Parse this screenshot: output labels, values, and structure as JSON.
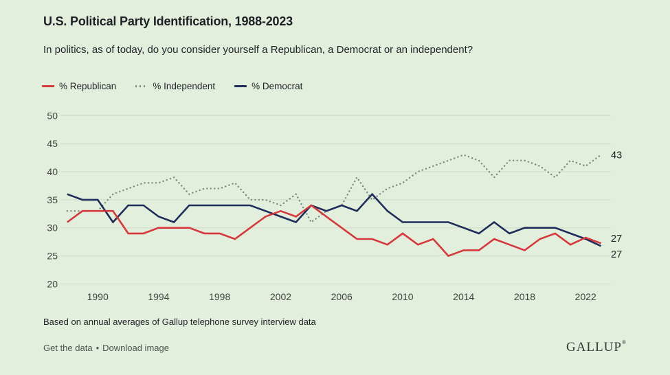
{
  "chart_data": {
    "type": "line",
    "title": "U.S. Political Party Identification, 1988-2023",
    "subtitle": "In politics, as of today, do you consider yourself a Republican, a Democrat or an independent?",
    "x": [
      1988,
      1989,
      1990,
      1991,
      1992,
      1993,
      1994,
      1995,
      1996,
      1997,
      1998,
      1999,
      2000,
      2001,
      2002,
      2003,
      2004,
      2005,
      2006,
      2007,
      2008,
      2009,
      2010,
      2011,
      2012,
      2013,
      2014,
      2015,
      2016,
      2017,
      2018,
      2019,
      2020,
      2021,
      2022,
      2023
    ],
    "series": [
      {
        "name": "% Republican",
        "color": "#d6383c",
        "line_style": "solid",
        "values": [
          31,
          33,
          33,
          33,
          29,
          29,
          30,
          30,
          30,
          29,
          29,
          28,
          30,
          32,
          33,
          32,
          34,
          32,
          30,
          28,
          28,
          27,
          29,
          27,
          28,
          25,
          26,
          26,
          28,
          27,
          26,
          28,
          29,
          27,
          28,
          27
        ]
      },
      {
        "name": "% Independent",
        "color": "#7d8c82",
        "line_style": "dotted",
        "values": [
          33,
          33,
          33,
          36,
          37,
          38,
          38,
          39,
          36,
          37,
          37,
          38,
          35,
          35,
          34,
          36,
          31,
          33,
          34,
          39,
          35,
          37,
          38,
          40,
          41,
          42,
          43,
          42,
          39,
          42,
          42,
          41,
          39,
          42,
          41,
          43
        ]
      },
      {
        "name": "% Democrat",
        "color": "#1f2d5a",
        "line_style": "solid",
        "values": [
          36,
          35,
          35,
          31,
          34,
          34,
          32,
          31,
          34,
          34,
          34,
          34,
          34,
          33,
          32,
          31,
          34,
          33,
          34,
          33,
          36,
          33,
          31,
          31,
          31,
          31,
          30,
          29,
          31,
          29,
          30,
          30,
          30,
          29,
          28,
          27
        ]
      }
    ],
    "ylim": [
      20,
      50
    ],
    "y_ticks": [
      50,
      45,
      40,
      35,
      30,
      25,
      20
    ],
    "x_ticks": [
      1990,
      1994,
      1998,
      2002,
      2006,
      2010,
      2014,
      2018,
      2022
    ],
    "end_labels": [
      {
        "series": "% Independent",
        "value": 43
      },
      {
        "series": "% Republican",
        "value": 27
      },
      {
        "series": "% Democrat",
        "value": 27
      }
    ],
    "grid": true,
    "legend_position": "top-left",
    "background_color": "#e2efdd",
    "gridline_color": "#ccdcc8",
    "axis_label_color": "#3f443f",
    "text_color": "#1d2125"
  },
  "footer": {
    "note": "Based on annual averages of Gallup telephone survey interview data",
    "links": [
      "Get the data",
      "Download image"
    ],
    "separator": "•",
    "logo": "GALLUP",
    "logo_mark": "®"
  }
}
